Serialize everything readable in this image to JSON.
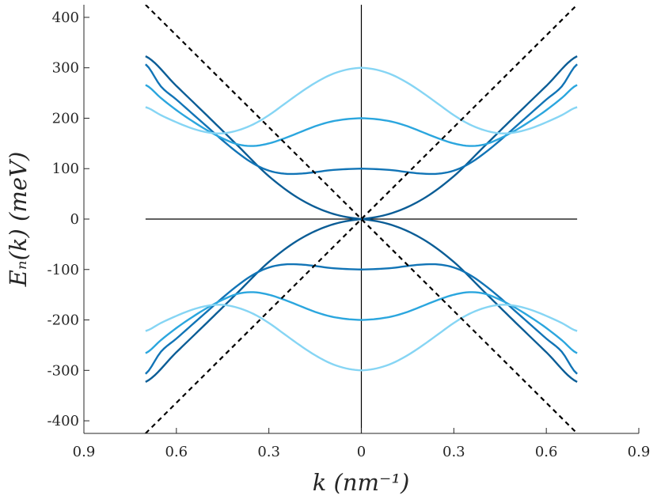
{
  "chart_data": {
    "type": "line",
    "xlabel": "k (nm⁻¹)",
    "ylabel": "Eₙ(k) (meV)",
    "xlim": [
      -0.9,
      0.9
    ],
    "ylim": [
      -425,
      425
    ],
    "xticks": [
      -0.9,
      -0.6,
      -0.3,
      0,
      0.3,
      0.6,
      0.9
    ],
    "xtick_labels": [
      "0.9",
      "0.6",
      "0.3",
      "0",
      "0.3",
      "0.6",
      "0.9"
    ],
    "yticks": [
      400,
      300,
      200,
      100,
      0,
      -100,
      -200,
      -300,
      -400
    ],
    "ytick_labels": [
      "400",
      "300",
      "200",
      "100",
      "0",
      "-100",
      "-200",
      "-300",
      "-400"
    ],
    "grid": false,
    "box": "left-bottom",
    "zero_lines": {
      "x": true,
      "y": true,
      "color": "#000000",
      "x_extent": [
        -0.7,
        0.7
      ]
    },
    "x_range_curves": [
      -0.7,
      0.7
    ],
    "series": [
      {
        "style": "solid",
        "color": "#0b5d96",
        "x": [
          0,
          0.1,
          0.2,
          0.3,
          0.4,
          0.5,
          0.6,
          0.7
        ],
        "y_upper": [
          0,
          12,
          40,
          85,
          145,
          205,
          264,
          323
        ]
      },
      {
        "style": "solid",
        "color": "#1174b6",
        "x": [
          0,
          0.05,
          0.1,
          0.15,
          0.2,
          0.25,
          0.3,
          0.35,
          0.4,
          0.45,
          0.5,
          0.55,
          0.6,
          0.65,
          0.7
        ],
        "y_upper": [
          100,
          99,
          97,
          93,
          90,
          90,
          96,
          110,
          131,
          156,
          183,
          210,
          237,
          263,
          307
        ]
      },
      {
        "style": "solid",
        "color": "#2ba6de",
        "x": [
          0,
          0.05,
          0.1,
          0.15,
          0.2,
          0.25,
          0.3,
          0.35,
          0.4,
          0.45,
          0.5,
          0.55,
          0.6,
          0.65,
          0.7
        ],
        "y_upper": [
          200,
          198,
          193,
          184,
          172,
          160,
          150,
          145,
          148,
          160,
          176,
          195,
          216,
          240,
          266
        ]
      },
      {
        "style": "solid",
        "color": "#86d5f4",
        "x": [
          0,
          0.05,
          0.1,
          0.15,
          0.2,
          0.25,
          0.3,
          0.35,
          0.4,
          0.45,
          0.5,
          0.55,
          0.6,
          0.65,
          0.7
        ],
        "y_upper": [
          300,
          296,
          286,
          270,
          250,
          228,
          206,
          188,
          176,
          170,
          172,
          180,
          192,
          206,
          222
        ]
      },
      {
        "style": "dashed",
        "color": "#000000",
        "x": [
          -0.7,
          0.7
        ],
        "y": [
          -425,
          425
        ]
      },
      {
        "style": "dashed",
        "color": "#000000",
        "x": [
          -0.7,
          0.7
        ],
        "y": [
          425,
          -425
        ]
      }
    ],
    "symmetry": "solid bands are mirrored about E=0 (lower branch y = -y_upper) and symmetric in k (|k| used)"
  }
}
